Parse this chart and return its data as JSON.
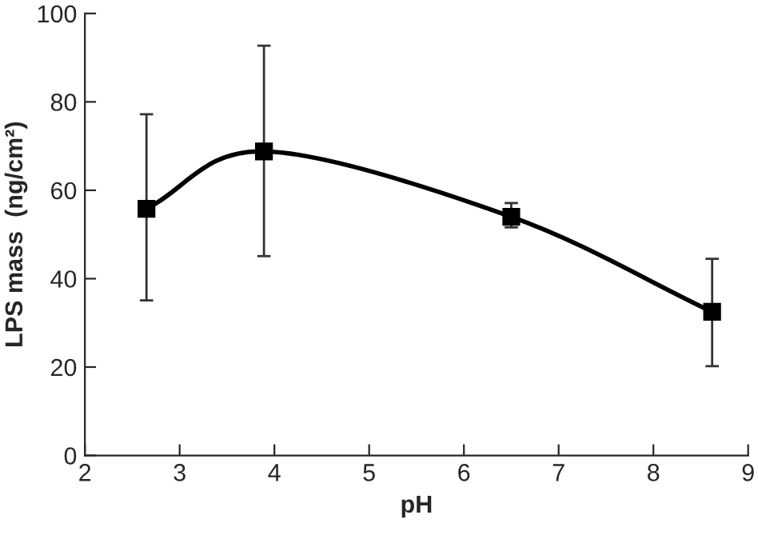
{
  "chart_data": {
    "type": "line",
    "xlabel": "pH",
    "ylabel": "LPS mass  (ng/cm²)",
    "x": [
      2.65,
      3.89,
      6.5,
      8.62
    ],
    "series": [
      {
        "color": "#000000",
        "values": [
          55.8,
          68.8,
          54.0,
          32.5
        ],
        "errors": [
          [
            35.1,
            77.2
          ],
          [
            45.1,
            92.7
          ],
          [
            51.6,
            57.1
          ],
          [
            20.2,
            44.5
          ]
        ]
      }
    ],
    "xlim": [
      2,
      9
    ],
    "xticks": [
      2,
      3,
      4,
      5,
      6,
      7,
      8,
      9
    ],
    "ylim": [
      0,
      100
    ],
    "yticks": [
      0,
      20,
      40,
      60,
      80,
      100
    ],
    "marker": "square",
    "line_style": "solid",
    "grid": false,
    "legend": false
  }
}
